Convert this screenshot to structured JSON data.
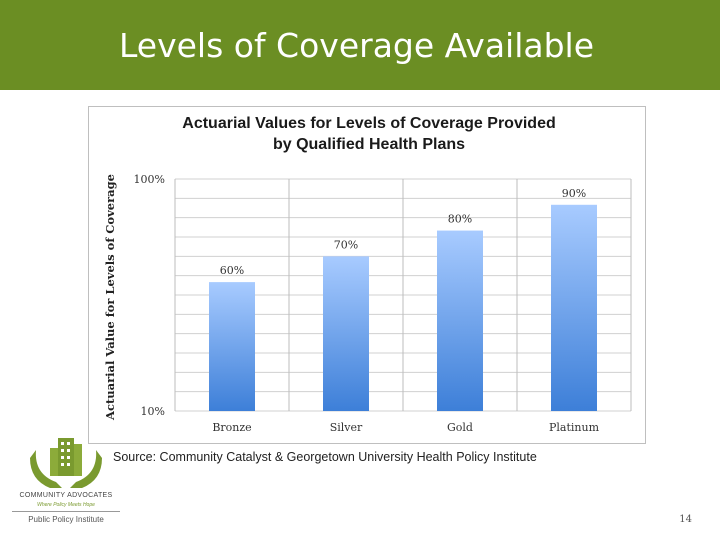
{
  "slide": {
    "title": "Levels of Coverage Available",
    "source": "Source: Community Catalyst & Georgetown University Health Policy Institute",
    "page_number": "14",
    "logo": {
      "name": "COMMUNITY ADVOCATES",
      "tagline": "Where Policy Meets Hope",
      "institute": "Public Policy Institute"
    }
  },
  "colors": {
    "header_bg": "#6b8e23",
    "bar_top": "#a8cbff",
    "bar_bottom": "#3d7fd8",
    "grid": "#d0d0d0"
  },
  "chart_data": {
    "type": "bar",
    "title_lines": [
      "Actuarial Values for Levels of Coverage Provided",
      "by Qualified Health Plans"
    ],
    "categories": [
      "Bronze",
      "Silver",
      "Gold",
      "Platinum"
    ],
    "values": [
      60,
      70,
      80,
      90
    ],
    "data_labels": [
      "60%",
      "70%",
      "80%",
      "90%"
    ],
    "ylabel": "Actuarial Value for Levels of Coverage",
    "xlabel": "",
    "ylim": [
      10,
      100
    ],
    "ytick_labels": [
      "10%",
      "100%"
    ],
    "grid": true
  }
}
